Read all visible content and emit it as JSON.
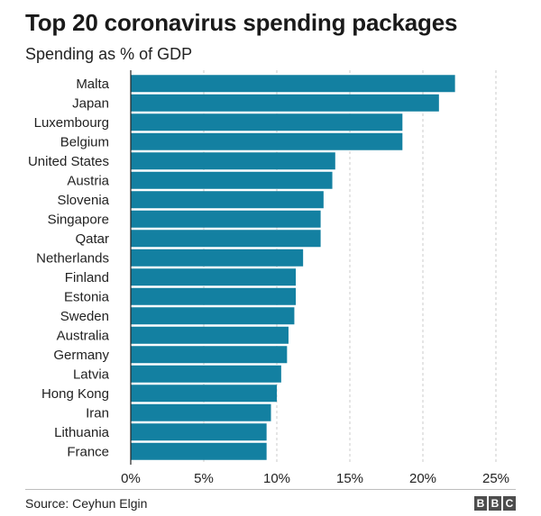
{
  "chart_data": {
    "type": "bar",
    "orientation": "horizontal",
    "title": "Top 20 coronavirus spending packages",
    "subtitle": "Spending as % of GDP",
    "categories": [
      "Malta",
      "Japan",
      "Luxembourg",
      "Belgium",
      "United States",
      "Austria",
      "Slovenia",
      "Singapore",
      "Qatar",
      "Netherlands",
      "Finland",
      "Estonia",
      "Sweden",
      "Australia",
      "Germany",
      "Latvia",
      "Hong Kong",
      "Iran",
      "Lithuania",
      "France"
    ],
    "values": [
      22.2,
      21.1,
      18.6,
      18.6,
      14.0,
      13.8,
      13.2,
      13.0,
      13.0,
      11.8,
      11.3,
      11.3,
      11.2,
      10.8,
      10.7,
      10.3,
      10.0,
      9.6,
      9.3,
      9.3
    ],
    "xlim": [
      0,
      25
    ],
    "ticks": [
      0,
      5,
      10,
      15,
      20,
      25
    ],
    "tick_labels": [
      "0%",
      "5%",
      "10%",
      "15%",
      "20%",
      "25%"
    ],
    "xlabel": "",
    "ylabel": "",
    "grid": "vertical dashed",
    "legend": "none",
    "bar_color": "#1380a1",
    "grid_color": "#cbcbcb",
    "axis_color": "#222222"
  },
  "footer": {
    "source": "Source: Ceyhun Elgin",
    "logo_letters": [
      "B",
      "B",
      "C"
    ]
  }
}
